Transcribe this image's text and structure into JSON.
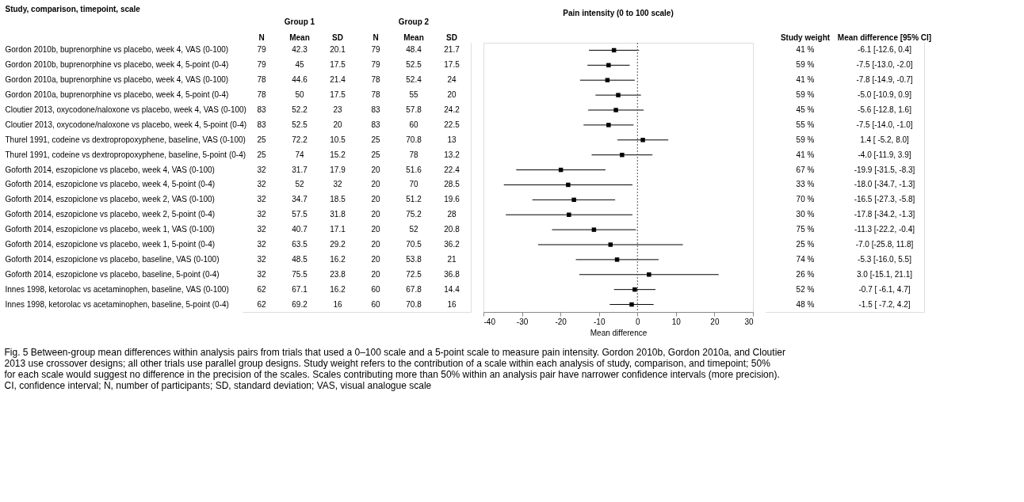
{
  "chart_data": [
    {
      "type": "other",
      "ylabel": "Study, comparison, timepoint, scale",
      "annotations": [
        "Group 1",
        "Group 2"
      ],
      "categories": [
        "N",
        "Mean",
        "SD",
        "N",
        "Mean",
        "SD"
      ],
      "y_categories": [
        "Gordon 2010b, buprenorphine vs placebo, week 4, VAS (0-100)",
        "Gordon 2010b, buprenorphine vs placebo, week 4, 5-point (0-4)",
        "Gordon 2010a, buprenorphine vs placebo, week 4, VAS (0-100)",
        "Gordon 2010a, buprenorphine vs placebo, week 4, 5-point (0-4)",
        "Cloutier 2013, oxycodone/naloxone vs placebo, week 4, VAS (0-100)",
        "Cloutier 2013, oxycodone/naloxone vs placebo, week 4, 5-point (0-4)",
        "Thurel 1991, codeine vs dextropropoxyphene, baseline, VAS (0-100)",
        "Thurel 1991, codeine vs dextropropoxyphene, baseline, 5-point (0-4)",
        "Goforth 2014, eszopiclone vs placebo, week 4, VAS (0-100)",
        "Goforth 2014, eszopiclone vs placebo, week 4, 5-point (0-4)",
        "Goforth 2014, eszopiclone vs placebo, week 2, VAS (0-100)",
        "Goforth 2014, eszopiclone vs placebo, week 2, 5-point (0-4)",
        "Goforth 2014, eszopiclone vs placebo, week 1, VAS (0-100)",
        "Goforth 2014, eszopiclone vs placebo, week 1, 5-point (0-4)",
        "Goforth 2014, eszopiclone vs placebo, baseline, VAS (0-100)",
        "Goforth 2014, eszopiclone vs placebo, baseline, 5-point (0-4)",
        "Innes 1998, ketorolac vs acetaminophen, baseline, VAS (0-100)",
        "Innes 1998, ketorolac vs acetaminophen, baseline, 5-point (0-4)"
      ],
      "cell_labels": [
        [
          "79",
          "42.3",
          "20.1",
          "79",
          "48.4",
          "21.7"
        ],
        [
          "79",
          "45",
          "17.5",
          "79",
          "52.5",
          "17.5"
        ],
        [
          "78",
          "44.6",
          "21.4",
          "78",
          "52.4",
          "24"
        ],
        [
          "78",
          "50",
          "17.5",
          "78",
          "55",
          "20"
        ],
        [
          "83",
          "52.2",
          "23",
          "83",
          "57.8",
          "24.2"
        ],
        [
          "83",
          "52.5",
          "20",
          "83",
          "60",
          "22.5"
        ],
        [
          "25",
          "72.2",
          "10.5",
          "25",
          "70.8",
          "13"
        ],
        [
          "25",
          "74",
          "15.2",
          "25",
          "78",
          "13.2"
        ],
        [
          "32",
          "31.7",
          "17.9",
          "20",
          "51.6",
          "22.4"
        ],
        [
          "32",
          "52",
          "32",
          "20",
          "70",
          "28.5"
        ],
        [
          "32",
          "34.7",
          "18.5",
          "20",
          "51.2",
          "19.6"
        ],
        [
          "32",
          "57.5",
          "31.8",
          "20",
          "75.2",
          "28"
        ],
        [
          "32",
          "40.7",
          "17.1",
          "20",
          "52",
          "20.8"
        ],
        [
          "32",
          "63.5",
          "29.2",
          "20",
          "70.5",
          "36.2"
        ],
        [
          "32",
          "48.5",
          "16.2",
          "20",
          "53.8",
          "21"
        ],
        [
          "32",
          "75.5",
          "23.8",
          "20",
          "72.5",
          "36.8"
        ],
        [
          "62",
          "67.1",
          "16.2",
          "60",
          "67.8",
          "14.4"
        ],
        [
          "62",
          "69.2",
          "16",
          "60",
          "70.8",
          "16"
        ]
      ]
    },
    {
      "type": "scatter",
      "title": "Pain intensity (0 to 100 scale)",
      "xlabel": "Mean difference",
      "annotations": [
        "Fig. 5 Between-group mean differences within analysis pairs from trials that used a 0–100 scale and a 5-point scale to measure pain intensity. Gordon 2010b, Gordon 2010a, and Cloutier 2013 use crossover designs; all other trials use parallel group designs. Study weight refers to the contribution of a scale within each analysis of study, comparison, and timepoint; 50% for each scale would suggest no difference in the precision of the scales. Scales contributing more than 50% within an analysis pair have narrower confidence intervals (more precision). CI, confidence interval; N, number of participants; SD, standard deviation; VAS, visual analogue scale"
      ],
      "categories": [
        null,
        null,
        null,
        null,
        null,
        null,
        null,
        null,
        null,
        null,
        null,
        null,
        null,
        null,
        null,
        null,
        null,
        null
      ],
      "tick_labels": "x",
      "marker": "square",
      "orientation": "horizontal",
      "xlim": [
        -40,
        30
      ],
      "xticks": [
        -40,
        -30,
        -20,
        -10,
        0,
        10,
        20,
        30
      ],
      "ref_lines": [
        {
          "axis": "x",
          "value": 0,
          "line_style": "dotted",
          "color": "#555555"
        }
      ],
      "series": [
        {
          "color": "#000000",
          "values": [
            -6.1,
            -7.5,
            -7.8,
            -5.0,
            -5.6,
            -7.5,
            1.4,
            -4.0,
            -19.9,
            -18.0,
            -16.5,
            -17.8,
            -11.3,
            -7.0,
            -5.3,
            3.0,
            -0.7,
            -1.5
          ],
          "errors": [
            [
              -12.6,
              0.4
            ],
            [
              -13.0,
              -2.0
            ],
            [
              -14.9,
              -0.7
            ],
            [
              -10.9,
              0.9
            ],
            [
              -12.8,
              1.6
            ],
            [
              -14.0,
              -1.0
            ],
            [
              -5.2,
              8.0
            ],
            [
              -11.9,
              3.9
            ],
            [
              -31.5,
              -8.3
            ],
            [
              -34.7,
              -1.3
            ],
            [
              -27.3,
              -5.8
            ],
            [
              -34.2,
              -1.3
            ],
            [
              -22.2,
              -0.4
            ],
            [
              -25.8,
              11.8
            ],
            [
              -16.0,
              5.5
            ],
            [
              -15.1,
              21.1
            ],
            [
              -6.1,
              4.7
            ],
            [
              -7.2,
              4.2
            ]
          ]
        }
      ]
    },
    {
      "type": "other",
      "categories": [
        "Study weight",
        "Mean difference [95% CI]"
      ],
      "y_categories": [
        null,
        null,
        null,
        null,
        null,
        null,
        null,
        null,
        null,
        null,
        null,
        null,
        null,
        null,
        null,
        null,
        null,
        null
      ],
      "cell_labels": [
        [
          "41 %",
          "-6.1 [-12.6, 0.4]"
        ],
        [
          "59 %",
          "-7.5 [-13.0, -2.0]"
        ],
        [
          "41 %",
          "-7.8 [-14.9, -0.7]"
        ],
        [
          "59 %",
          "-5.0 [-10.9, 0.9]"
        ],
        [
          "45 %",
          "-5.6 [-12.8, 1.6]"
        ],
        [
          "55 %",
          "-7.5 [-14.0, -1.0]"
        ],
        [
          "59 %",
          "1.4 [ -5.2, 8.0]"
        ],
        [
          "41 %",
          "-4.0 [-11.9, 3.9]"
        ],
        [
          "67 %",
          "-19.9 [-31.5, -8.3]"
        ],
        [
          "33 %",
          "-18.0 [-34.7, -1.3]"
        ],
        [
          "70 %",
          "-16.5 [-27.3, -5.8]"
        ],
        [
          "30 %",
          "-17.8 [-34.2, -1.3]"
        ],
        [
          "75 %",
          "-11.3 [-22.2, -0.4]"
        ],
        [
          "25 %",
          "-7.0 [-25.8, 11.8]"
        ],
        [
          "74 %",
          "-5.3 [-16.0, 5.5]"
        ],
        [
          "26 %",
          "3.0 [-15.1, 21.1]"
        ],
        [
          "52 %",
          "-0.7 [ -6.1, 4.7]"
        ],
        [
          "48 %",
          "-1.5 [ -7.2, 4.2]"
        ]
      ]
    }
  ]
}
